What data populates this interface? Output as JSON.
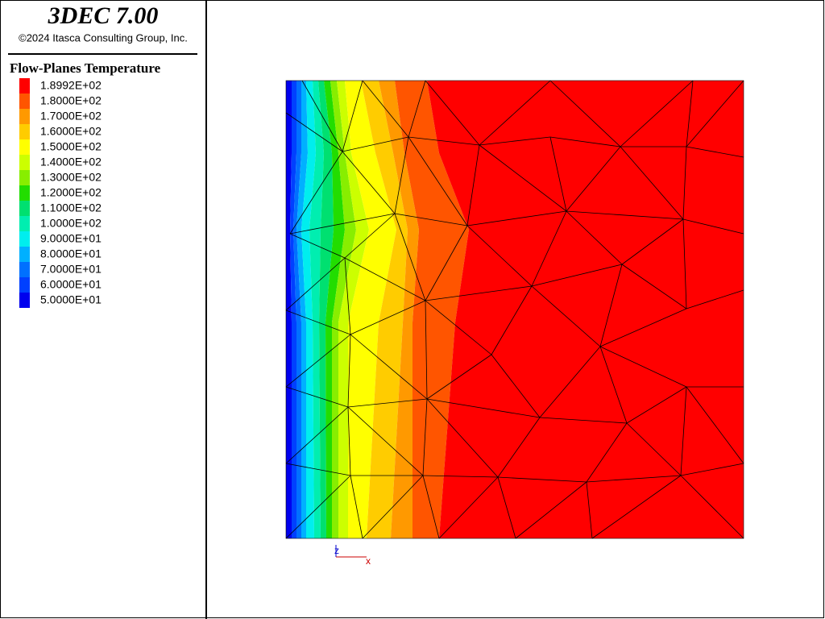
{
  "header": {
    "title": "3DEC 7.00",
    "copyright": "©2024 Itasca Consulting Group, Inc."
  },
  "legend": {
    "title": "Flow-Planes Temperature",
    "entries": [
      {
        "label": "1.8992E+02",
        "color": "#ff0000"
      },
      {
        "label": "1.8000E+02",
        "color": "#ff5500"
      },
      {
        "label": "1.7000E+02",
        "color": "#ff9900"
      },
      {
        "label": "1.6000E+02",
        "color": "#ffcc00"
      },
      {
        "label": "1.5000E+02",
        "color": "#ffff00"
      },
      {
        "label": "1.4000E+02",
        "color": "#ccff00"
      },
      {
        "label": "1.3000E+02",
        "color": "#88ee00"
      },
      {
        "label": "1.2000E+02",
        "color": "#22dd00"
      },
      {
        "label": "1.1000E+02",
        "color": "#00e070"
      },
      {
        "label": "1.0000E+02",
        "color": "#00eeb0"
      },
      {
        "label": "9.0000E+01",
        "color": "#00eeee"
      },
      {
        "label": "8.0000E+01",
        "color": "#00b0ff"
      },
      {
        "label": "7.0000E+01",
        "color": "#0070ff"
      },
      {
        "label": "6.0000E+01",
        "color": "#0040ff"
      },
      {
        "label": "5.0000E+01",
        "color": "#0000ee"
      }
    ]
  },
  "axes": {
    "z": "z",
    "x": "x"
  }
}
